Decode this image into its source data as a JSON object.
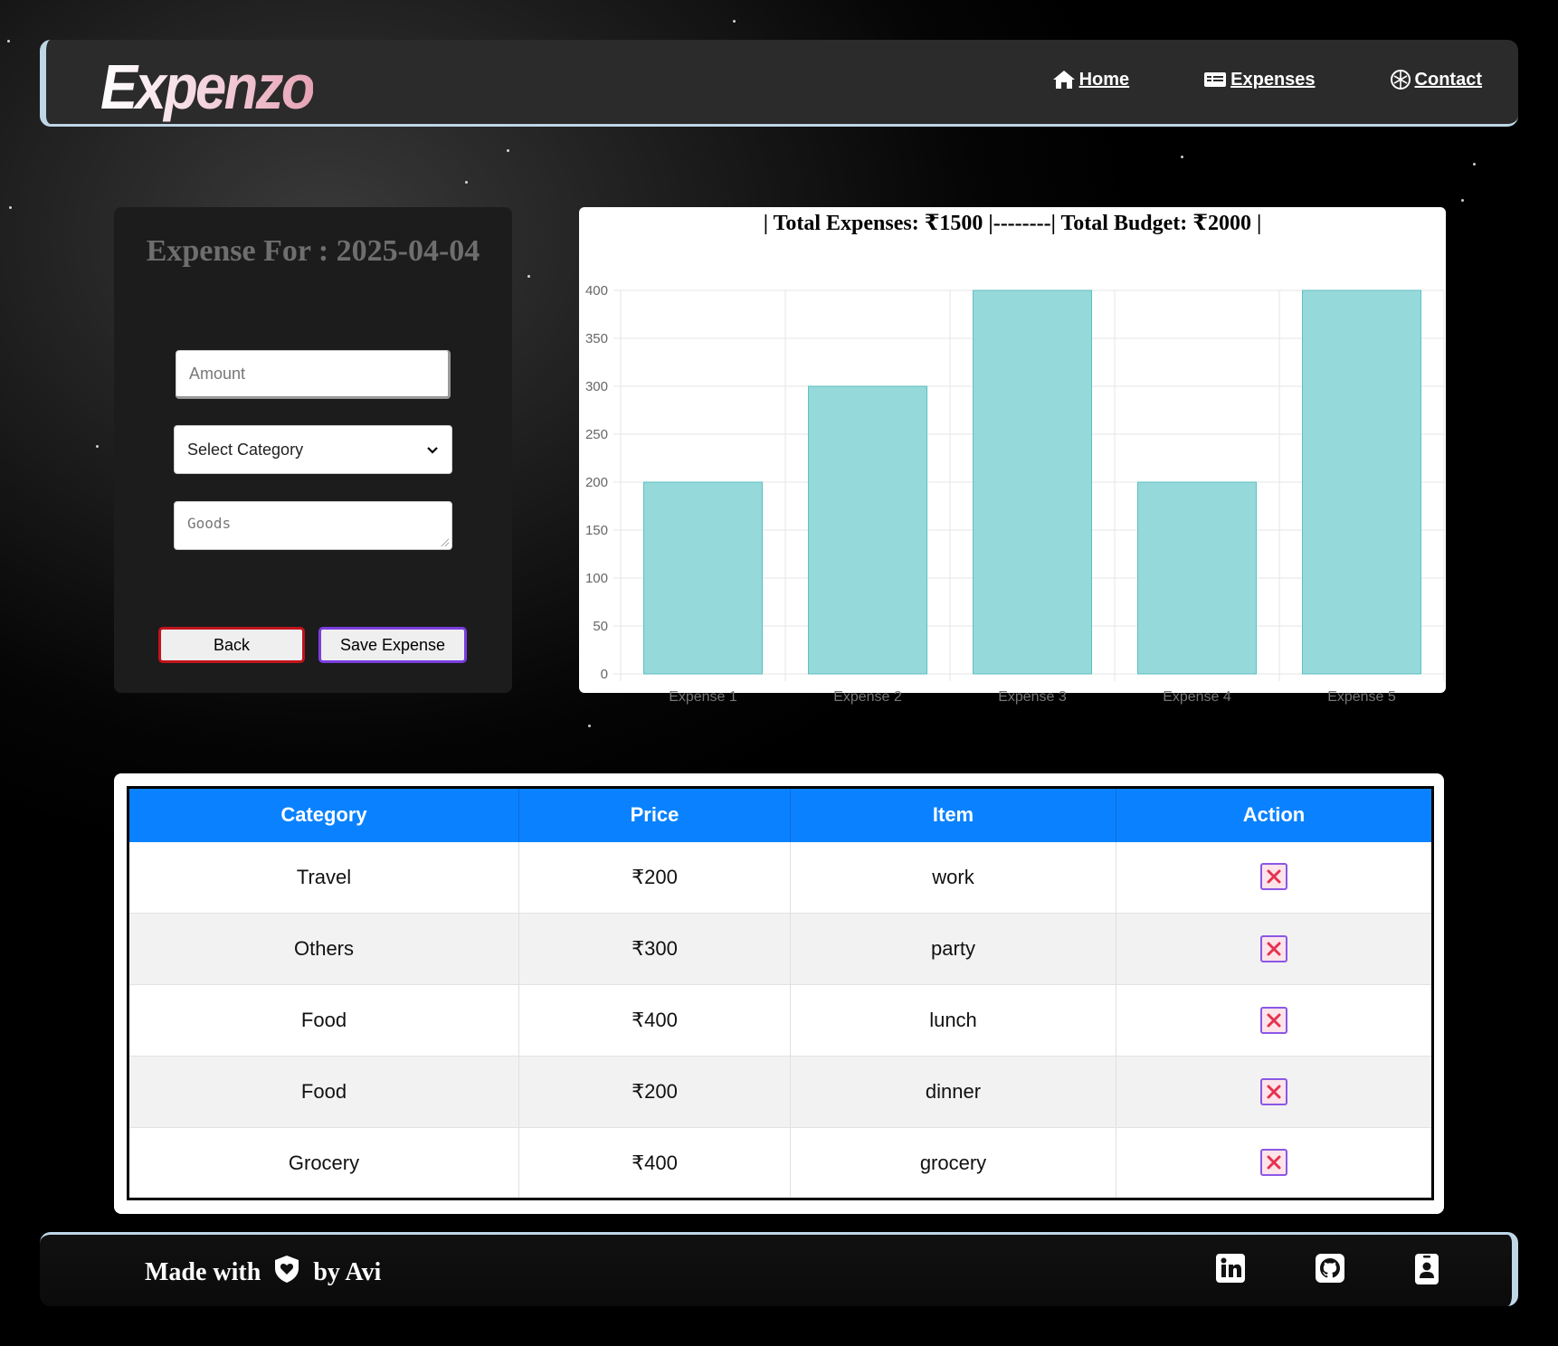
{
  "brand": {
    "name": "Expenzo"
  },
  "nav": {
    "items": [
      {
        "label": "Home",
        "icon": "home-icon"
      },
      {
        "label": "Expenses",
        "icon": "money-bill-icon"
      },
      {
        "label": "Contact",
        "icon": "contact-icon"
      }
    ]
  },
  "form": {
    "title": "Expense For : 2025-04-04",
    "amount_placeholder": "Amount",
    "category_selected": "Select Category",
    "goods_placeholder": "Goods",
    "back_label": "Back",
    "save_label": "Save Expense"
  },
  "chart_data": {
    "type": "bar",
    "title": "| Total Expenses: ₹1500 |--------| Total Budget: ₹2000 |",
    "categories": [
      "Expense 1",
      "Expense 2",
      "Expense 3",
      "Expense 4",
      "Expense 5"
    ],
    "values": [
      200,
      300,
      400,
      200,
      400
    ],
    "ylim": [
      0,
      400
    ],
    "yticks": [
      0,
      50,
      100,
      150,
      200,
      250,
      300,
      350,
      400
    ],
    "grid": true,
    "legend": "none",
    "bar_color": "#96d9da",
    "bar_border_color": "#5fbfc1"
  },
  "table": {
    "headers": [
      "Category",
      "Price",
      "Item",
      "Action"
    ],
    "rows": [
      {
        "category": "Travel",
        "price": "₹200",
        "item": "work"
      },
      {
        "category": "Others",
        "price": "₹300",
        "item": "party"
      },
      {
        "category": "Food",
        "price": "₹400",
        "item": "lunch"
      },
      {
        "category": "Food",
        "price": "₹200",
        "item": "dinner"
      },
      {
        "category": "Grocery",
        "price": "₹400",
        "item": "grocery"
      }
    ],
    "action_icon": "delete-x-icon"
  },
  "footer": {
    "made_with": "Made with",
    "by": "by Avi",
    "heart_icon": "shield-heart-icon",
    "icons": [
      "linkedin-icon",
      "github-icon",
      "contact-card-icon"
    ]
  },
  "colors": {
    "accent_border": "#bfd6e6",
    "table_header": "#0a82ff",
    "back_border": "#c0141b",
    "save_border": "#7a3ee0"
  }
}
